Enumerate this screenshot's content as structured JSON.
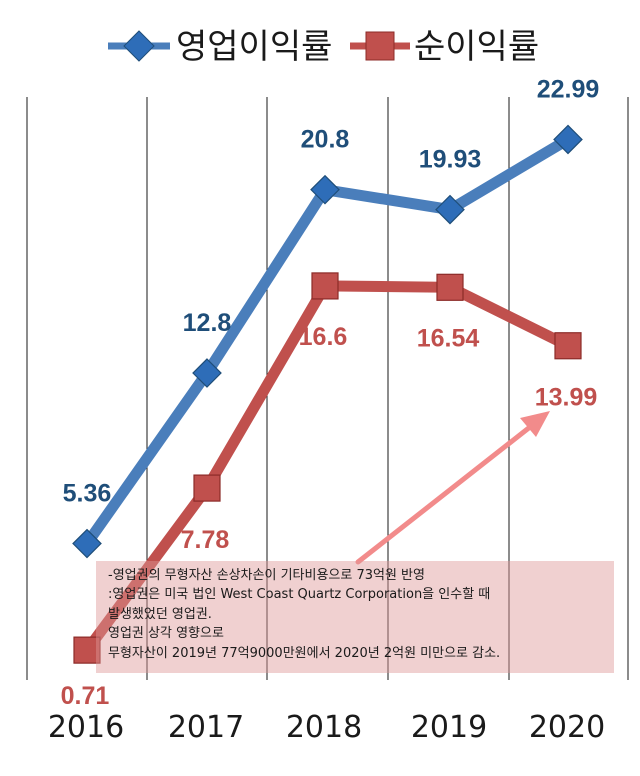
{
  "chart_data": {
    "type": "line",
    "title": "",
    "xlabel": "",
    "ylabel": "",
    "categories": [
      "2016",
      "2017",
      "2018",
      "2019",
      "2020"
    ],
    "grid": "vertical",
    "legend_position": "top",
    "series": [
      {
        "name": "영업이익률",
        "color": "#4a7ebb",
        "marker": "diamond",
        "values": [
          5.36,
          12.8,
          20.8,
          19.93,
          22.99
        ],
        "labels": [
          "5.36",
          "12.8",
          "20.8",
          "19.93",
          "22.99"
        ]
      },
      {
        "name": "순이익률",
        "color": "#c0504d",
        "marker": "square",
        "values": [
          0.71,
          7.78,
          16.6,
          16.54,
          13.99
        ],
        "labels": [
          "0.71",
          "7.78",
          "16.6",
          "16.54",
          "13.99"
        ]
      }
    ]
  },
  "annotation": {
    "lines": [
      "-영업권의 무형자산 손상차손이 기타비용으로 73억원 반영",
      ":영업권은 미국 법인 West Coast Quartz Corporation을 인수할 때",
      "발생했었던 영업권.",
      "영업권 상각 영향으로",
      "무형자산이 2019년 77억9000만원에서 2020년 2억원 미만으로 감소."
    ],
    "arrow_color": "#f28b8b"
  }
}
